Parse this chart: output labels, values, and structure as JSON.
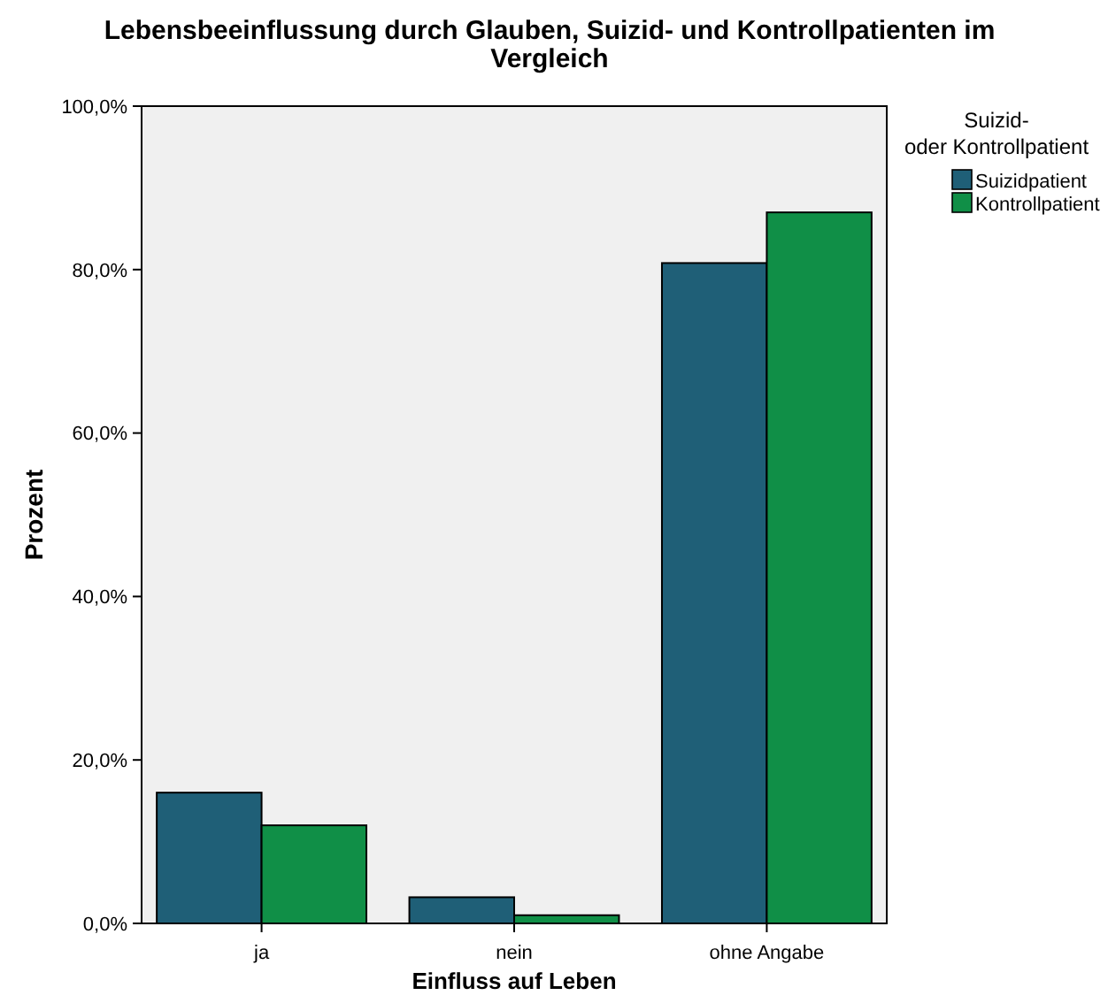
{
  "chart_data": {
    "type": "bar",
    "title": "Lebensbeeinflussung durch Glauben, Suizid- und Kontrollpatienten im Vergleich",
    "xlabel": "Einfluss auf Leben",
    "ylabel": "Prozent",
    "legend_title": "Suizid- oder Kontrollpatient",
    "categories": [
      "ja",
      "nein",
      "ohne Angabe"
    ],
    "series": [
      {
        "name": "Suizidpatient",
        "color": "#1f5f77",
        "values": [
          16.0,
          3.2,
          80.8
        ]
      },
      {
        "name": "Kontrollpatient",
        "color": "#108f47",
        "values": [
          12.0,
          1.0,
          87.0
        ]
      }
    ],
    "ylim": [
      0,
      100
    ],
    "yticks": [
      {
        "value": 0,
        "label": "0,0%"
      },
      {
        "value": 20,
        "label": "20,0%"
      },
      {
        "value": 40,
        "label": "40,0%"
      },
      {
        "value": 60,
        "label": "60,0%"
      },
      {
        "value": 80,
        "label": "80,0%"
      },
      {
        "value": 100,
        "label": "100,0%"
      }
    ],
    "grid": false,
    "legend": "top right"
  }
}
